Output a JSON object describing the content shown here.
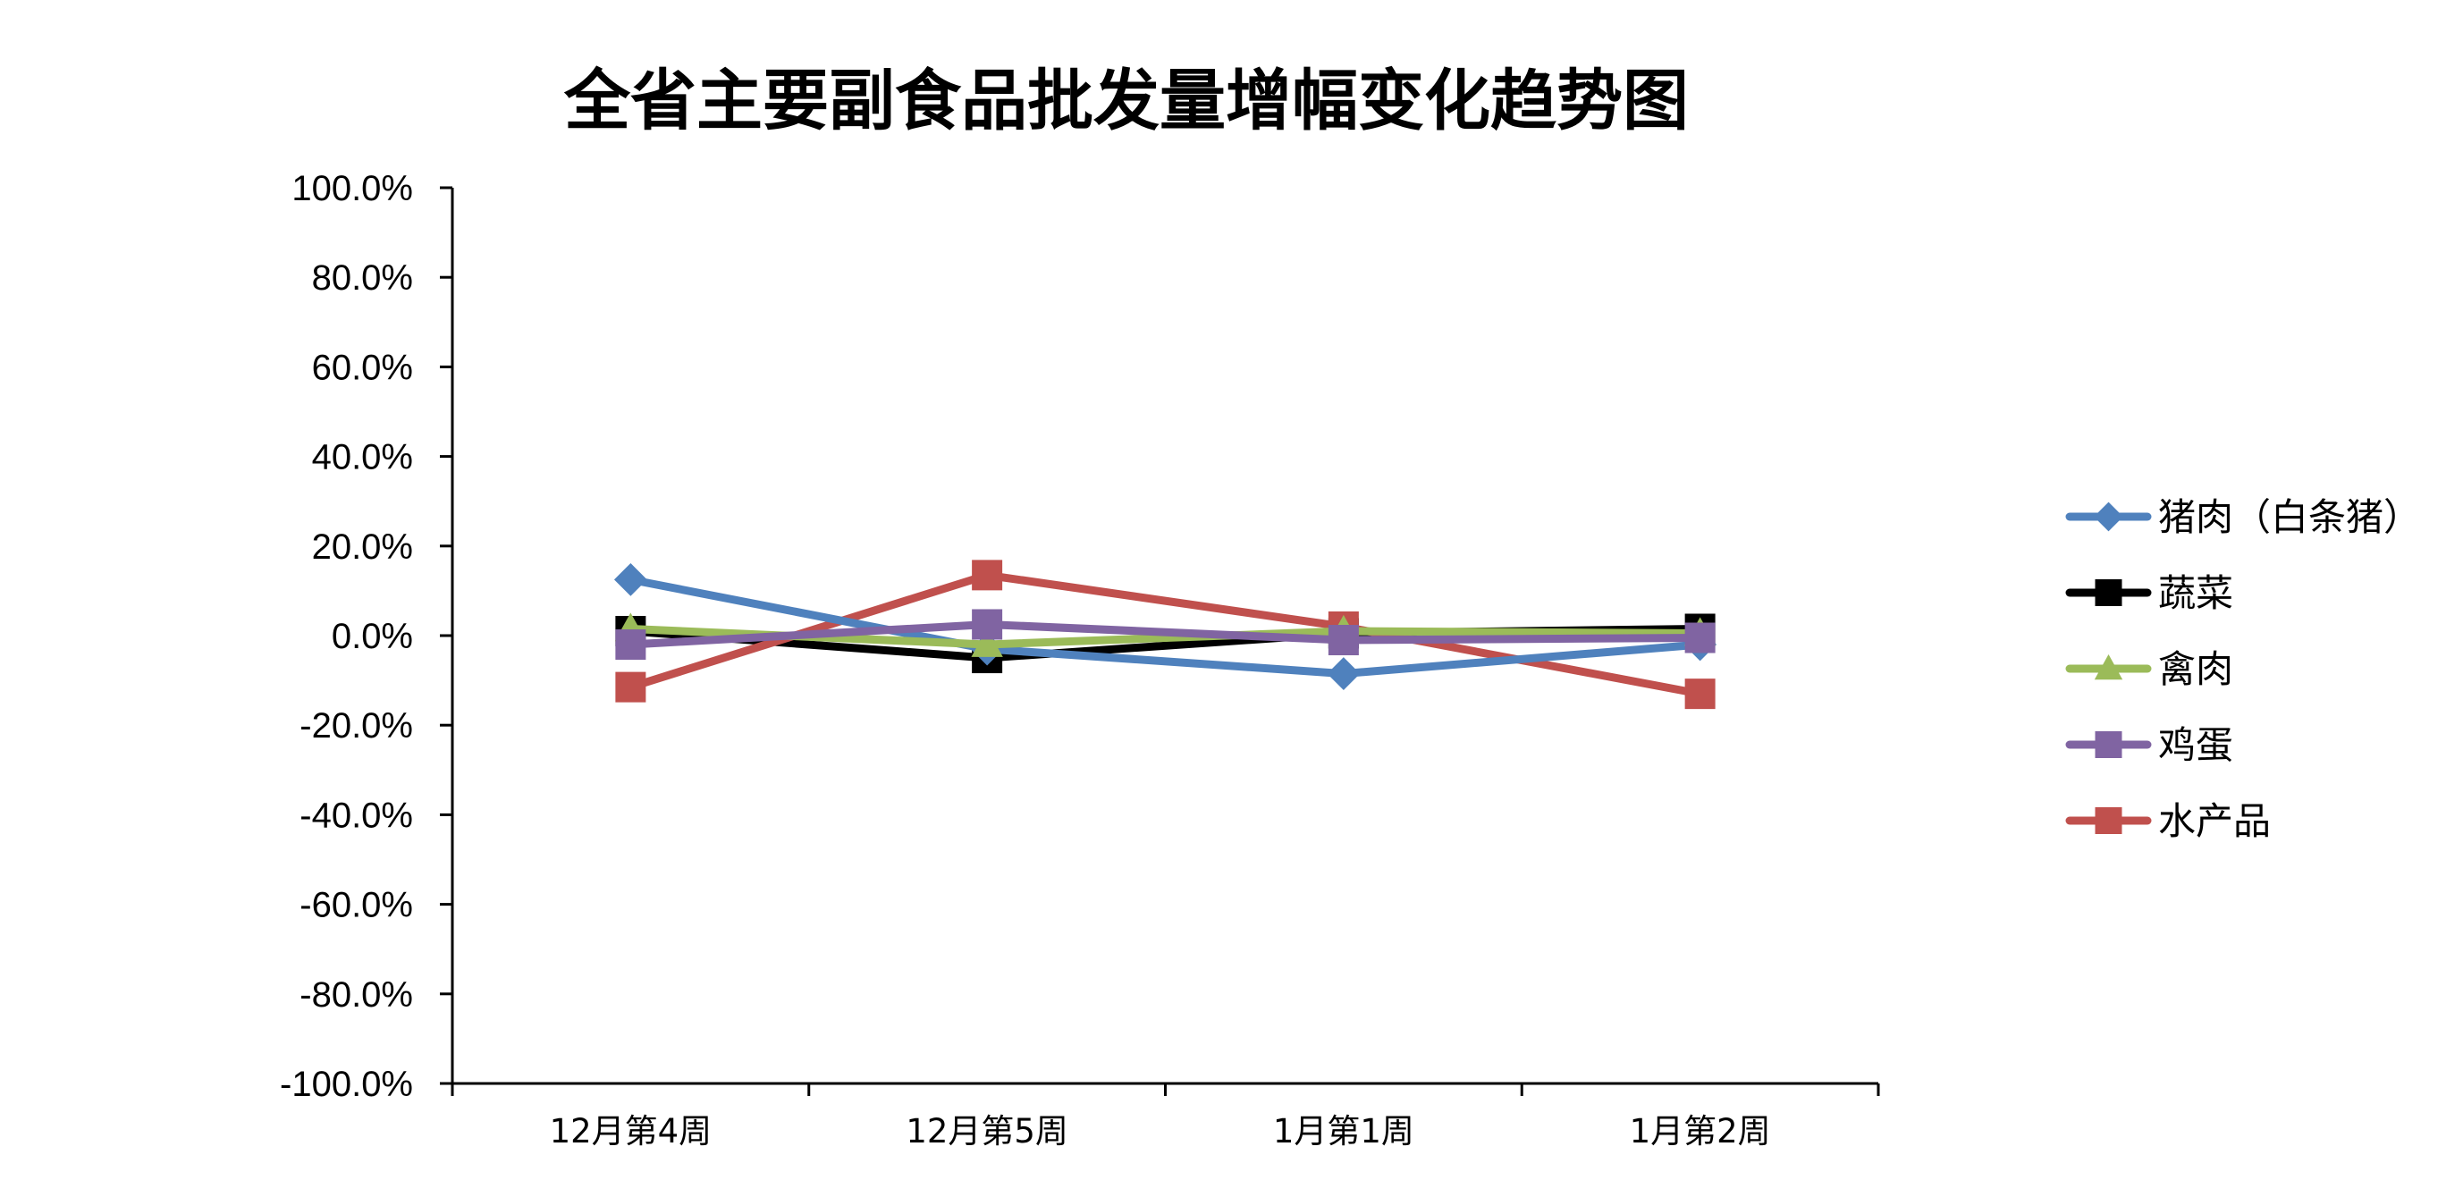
{
  "chart_data": {
    "type": "line",
    "title": "全省主要副食品批发量增幅变化趋势图",
    "xlabel": "",
    "ylabel": "",
    "categories": [
      "12月第4周",
      "12月第5周",
      "1月第1周",
      "1月第2周"
    ],
    "ylim": [
      -100,
      100
    ],
    "yticks": [
      -100,
      -80,
      -60,
      -40,
      -20,
      0,
      20,
      40,
      60,
      80,
      100
    ],
    "ytick_labels": [
      "-100.0%",
      "-80.0%",
      "-60.0%",
      "-40.0%",
      "-20.0%",
      "0.0%",
      "20.0%",
      "40.0%",
      "60.0%",
      "80.0%",
      "100.0%"
    ],
    "grid": false,
    "legend_position": "right",
    "series": [
      {
        "name": "猪肉（白条猪）",
        "values": [
          12.5,
          -3.0,
          -8.5,
          -2.0
        ],
        "color": "#4F81BD",
        "marker": "diamond"
      },
      {
        "name": "蔬菜",
        "values": [
          1.0,
          -5.0,
          0.5,
          1.5
        ],
        "color": "#000000",
        "marker": "square"
      },
      {
        "name": "禽肉",
        "values": [
          1.5,
          -2.0,
          1.0,
          0.5
        ],
        "color": "#9BBB59",
        "marker": "triangle"
      },
      {
        "name": "鸡蛋",
        "values": [
          -2.0,
          2.5,
          -1.0,
          -0.5
        ],
        "color": "#8064A2",
        "marker": "square"
      },
      {
        "name": "水产品",
        "values": [
          -11.5,
          13.5,
          2.0,
          -13.0
        ],
        "color": "#C0504D",
        "marker": "square"
      }
    ]
  }
}
